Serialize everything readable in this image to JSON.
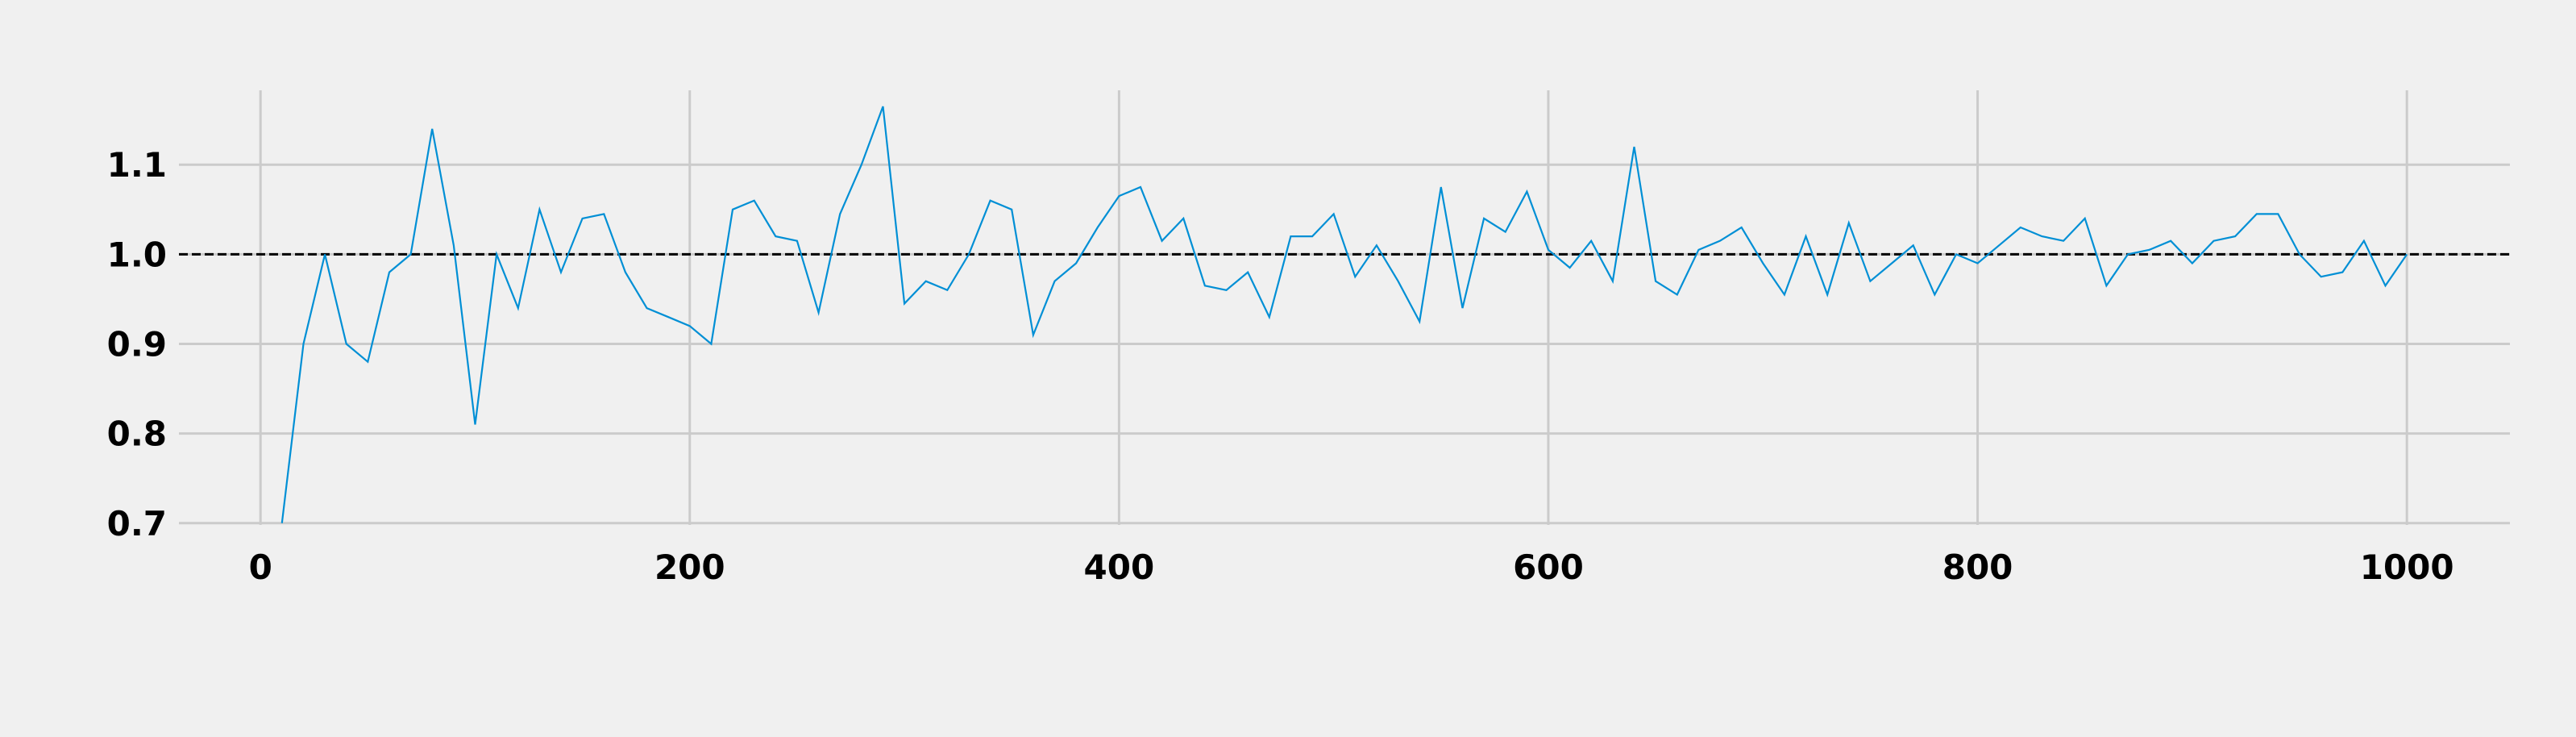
{
  "chart_data": {
    "type": "line",
    "title": "",
    "xlabel": "",
    "ylabel": "",
    "xlim": [
      -38,
      1048
    ],
    "ylim": [
      0.698,
      1.183
    ],
    "xticks": [
      0,
      200,
      400,
      600,
      800,
      1000
    ],
    "xtick_labels": [
      "0",
      "200",
      "400",
      "600",
      "800",
      "1000"
    ],
    "yticks": [
      0.7,
      0.8,
      0.9,
      1.0,
      1.1
    ],
    "ytick_labels": [
      "0.7",
      "0.8",
      "0.9",
      "1.0",
      "1.1"
    ],
    "grid": true,
    "reference_line": {
      "y": 1.0,
      "style": "dashed",
      "color": "#000000"
    },
    "series": [
      {
        "color": "#008fd5",
        "x": [
          10,
          20,
          30,
          40,
          50,
          60,
          70,
          80,
          90,
          100,
          110,
          120,
          130,
          140,
          150,
          160,
          170,
          180,
          190,
          200,
          210,
          220,
          230,
          240,
          250,
          260,
          270,
          280,
          290,
          300,
          310,
          320,
          330,
          340,
          350,
          360,
          370,
          380,
          390,
          400,
          410,
          420,
          430,
          440,
          450,
          460,
          470,
          480,
          490,
          500,
          510,
          520,
          530,
          540,
          550,
          560,
          570,
          580,
          590,
          600,
          610,
          620,
          630,
          640,
          650,
          660,
          670,
          680,
          690,
          700,
          710,
          720,
          730,
          740,
          750,
          760,
          770,
          780,
          790,
          800,
          810,
          820,
          830,
          840,
          850,
          860,
          870,
          880,
          890,
          900,
          910,
          920,
          930,
          940,
          950,
          960,
          970,
          980,
          990,
          1000
        ],
        "y": [
          0.7,
          0.9,
          1.0,
          0.9,
          0.88,
          0.98,
          1.0,
          1.14,
          1.01,
          0.81,
          1.0,
          0.94,
          1.05,
          0.98,
          1.04,
          1.045,
          0.98,
          0.94,
          0.93,
          0.92,
          0.9,
          1.05,
          1.06,
          1.02,
          1.015,
          0.935,
          1.045,
          1.1,
          1.165,
          0.945,
          0.97,
          0.96,
          1.0,
          1.06,
          1.05,
          0.91,
          0.97,
          0.99,
          1.03,
          1.065,
          1.075,
          1.015,
          1.04,
          0.965,
          0.96,
          0.98,
          0.93,
          1.02,
          1.02,
          1.045,
          0.975,
          1.01,
          0.97,
          0.925,
          1.075,
          0.94,
          1.04,
          1.025,
          1.07,
          1.005,
          0.985,
          1.015,
          0.97,
          1.12,
          0.97,
          0.955,
          1.005,
          1.015,
          1.03,
          0.99,
          0.955,
          1.02,
          0.955,
          1.035,
          0.97,
          0.99,
          1.01,
          0.955,
          1.0,
          0.99,
          1.01,
          1.03,
          1.02,
          1.015,
          1.04,
          0.965,
          1.0,
          1.005,
          1.015,
          0.99,
          1.015,
          1.02,
          1.045,
          1.045,
          1.0,
          0.975,
          0.98,
          1.015,
          0.965,
          1.0
        ]
      }
    ]
  }
}
